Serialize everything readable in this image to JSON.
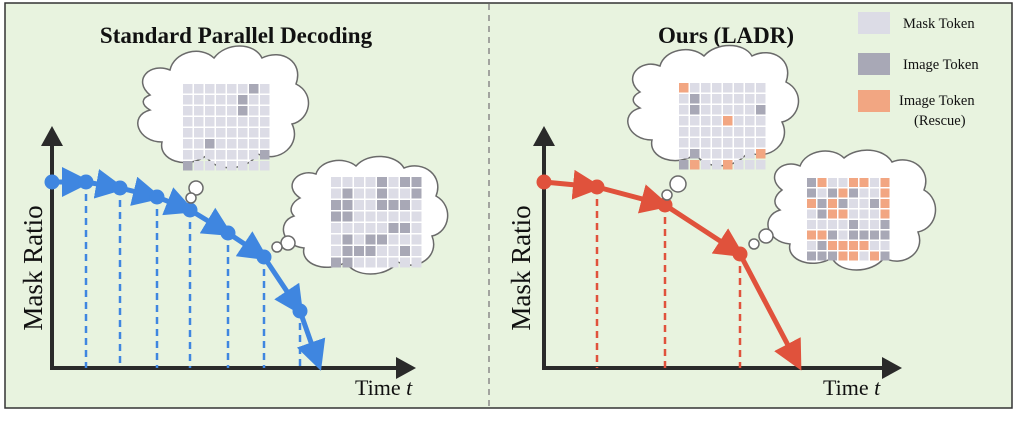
{
  "panels": {
    "left": {
      "title": "Standard Parallel Decoding",
      "ylabel": "Mask Ratio",
      "xlabel": "Time",
      "xlabel_var": "t"
    },
    "right": {
      "title": "Ours (LADR)",
      "ylabel": "Mask Ratio",
      "xlabel": "Time",
      "xlabel_var": "t"
    }
  },
  "legend": {
    "mask": "Mask Token",
    "image": "Image Token",
    "rescue_line1": "Image Token",
    "rescue_line2": "(Rescue)"
  },
  "colors": {
    "panel_bg": "#e8f3df",
    "blue": "#3f86e0",
    "red": "#e0523c",
    "mask_token": "#dcdce6",
    "image_token": "#a8a8b6",
    "rescue_token": "#f2a682",
    "axis": "#2a2a2a",
    "cloud_stroke": "#6a6a6a"
  }
}
